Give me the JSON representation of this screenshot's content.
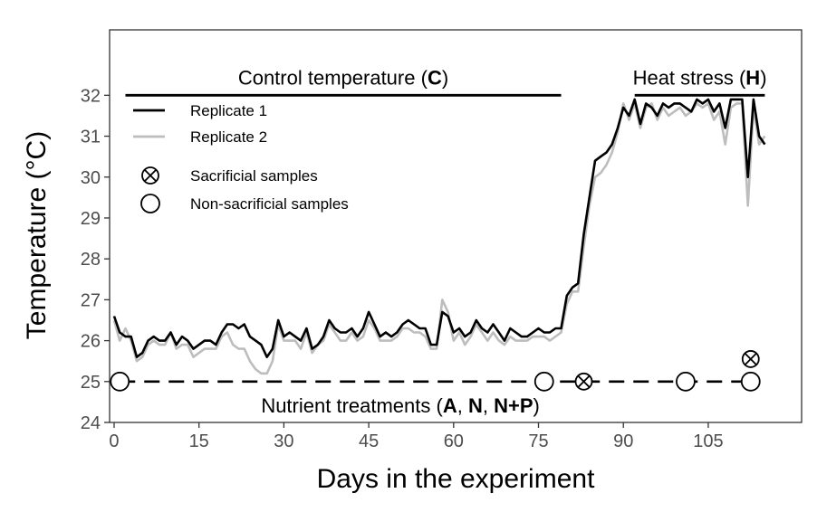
{
  "chart_data": {
    "type": "line",
    "xlabel": "Days in the experiment",
    "ylabel": "Temperature (°C)",
    "xlim": [
      -0.8,
      121.5
    ],
    "ylim": [
      24,
      33.6
    ],
    "x_ticks": [
      0,
      15,
      30,
      45,
      60,
      75,
      90,
      105
    ],
    "y_ticks": [
      24,
      25,
      26,
      27,
      28,
      29,
      30,
      31,
      32
    ],
    "grid": false,
    "legend_position": "top-left",
    "colors": {
      "replicate1": "#000000",
      "replicate2": "#bdbdbd"
    },
    "series": [
      {
        "name": "Replicate 1",
        "x": [
          0,
          1,
          2,
          3,
          4,
          5,
          6,
          7,
          8,
          9,
          10,
          11,
          12,
          13,
          14,
          15,
          16,
          17,
          18,
          19,
          20,
          21,
          22,
          23,
          24,
          25,
          26,
          27,
          28,
          29,
          30,
          31,
          32,
          33,
          34,
          35,
          36,
          37,
          38,
          39,
          40,
          41,
          42,
          43,
          44,
          45,
          46,
          47,
          48,
          49,
          50,
          51,
          52,
          53,
          54,
          55,
          56,
          57,
          58,
          59,
          60,
          61,
          62,
          63,
          64,
          65,
          66,
          67,
          68,
          69,
          70,
          71,
          72,
          73,
          74,
          75,
          76,
          77,
          78,
          79,
          80,
          81,
          82,
          83,
          84,
          85,
          86,
          87,
          88,
          89,
          90,
          91,
          92,
          93,
          94,
          95,
          96,
          97,
          98,
          99,
          100,
          101,
          102,
          103,
          104,
          105,
          106,
          107,
          108,
          109,
          110,
          111,
          112,
          113,
          114,
          115
        ],
        "values": [
          26.6,
          26.2,
          26.1,
          26.1,
          25.6,
          25.7,
          26.0,
          26.1,
          26.0,
          26.0,
          26.2,
          25.9,
          26.1,
          26.0,
          25.8,
          25.9,
          26.0,
          26.0,
          25.9,
          26.2,
          26.4,
          26.4,
          26.3,
          26.4,
          26.1,
          26.0,
          25.9,
          25.6,
          25.8,
          26.5,
          26.1,
          26.2,
          26.1,
          26.0,
          26.3,
          25.8,
          25.9,
          26.1,
          26.5,
          26.3,
          26.2,
          26.2,
          26.3,
          26.1,
          26.3,
          26.7,
          26.4,
          26.1,
          26.2,
          26.1,
          26.2,
          26.4,
          26.5,
          26.4,
          26.3,
          26.3,
          25.9,
          25.9,
          26.7,
          26.6,
          26.2,
          26.3,
          26.1,
          26.2,
          26.5,
          26.3,
          26.2,
          26.4,
          26.2,
          26.0,
          26.3,
          26.2,
          26.1,
          26.1,
          26.2,
          26.3,
          26.2,
          26.2,
          26.3,
          26.3,
          27.1,
          27.3,
          27.4,
          28.6,
          29.5,
          30.4,
          30.5,
          30.6,
          30.8,
          31.2,
          31.7,
          31.5,
          31.9,
          31.3,
          31.8,
          31.7,
          31.5,
          31.8,
          31.7,
          31.8,
          31.8,
          31.7,
          31.6,
          31.9,
          31.8,
          31.9,
          31.6,
          31.8,
          31.2,
          31.9,
          31.9,
          31.9,
          30.0,
          31.9,
          31.0,
          30.8
        ]
      },
      {
        "name": "Replicate 2",
        "x": [
          0,
          1,
          2,
          3,
          4,
          5,
          6,
          7,
          8,
          9,
          10,
          11,
          12,
          13,
          14,
          15,
          16,
          17,
          18,
          19,
          20,
          21,
          22,
          23,
          24,
          25,
          26,
          27,
          28,
          29,
          30,
          31,
          32,
          33,
          34,
          35,
          36,
          37,
          38,
          39,
          40,
          41,
          42,
          43,
          44,
          45,
          46,
          47,
          48,
          49,
          50,
          51,
          52,
          53,
          54,
          55,
          56,
          57,
          58,
          59,
          60,
          61,
          62,
          63,
          64,
          65,
          66,
          67,
          68,
          69,
          70,
          71,
          72,
          73,
          74,
          75,
          76,
          77,
          78,
          79,
          80,
          81,
          82,
          83,
          84,
          85,
          86,
          87,
          88,
          89,
          90,
          91,
          92,
          93,
          94,
          95,
          96,
          97,
          98,
          99,
          100,
          101,
          102,
          103,
          104,
          105,
          106,
          107,
          108,
          109,
          110,
          111,
          112,
          113,
          114,
          115
        ],
        "values": [
          26.5,
          26.0,
          26.3,
          26.0,
          25.5,
          25.6,
          25.9,
          26.0,
          25.9,
          25.9,
          26.2,
          25.8,
          25.9,
          25.9,
          25.6,
          25.7,
          25.8,
          25.8,
          25.8,
          26.1,
          26.2,
          25.9,
          25.8,
          25.8,
          25.5,
          25.3,
          25.2,
          25.2,
          25.5,
          26.4,
          26.0,
          26.0,
          26.0,
          25.8,
          26.2,
          25.7,
          25.9,
          26.0,
          26.4,
          26.2,
          26.0,
          26.0,
          26.2,
          26.0,
          26.1,
          26.5,
          26.3,
          26.0,
          26.0,
          26.0,
          26.1,
          26.3,
          26.3,
          26.2,
          26.2,
          26.1,
          25.8,
          25.8,
          27.0,
          26.7,
          26.0,
          26.2,
          25.9,
          26.1,
          26.4,
          26.2,
          26.0,
          26.2,
          26.0,
          25.9,
          26.1,
          26.0,
          26.0,
          26.0,
          26.1,
          26.1,
          26.1,
          26.0,
          26.1,
          26.2,
          26.9,
          27.2,
          27.2,
          28.3,
          29.3,
          30.0,
          30.1,
          30.3,
          30.6,
          31.1,
          31.8,
          31.4,
          31.8,
          31.2,
          31.7,
          31.8,
          31.4,
          31.7,
          31.5,
          31.6,
          31.7,
          31.5,
          31.6,
          31.8,
          31.7,
          31.8,
          31.4,
          31.6,
          30.8,
          31.7,
          31.8,
          31.8,
          29.3,
          31.7,
          30.8,
          31.0
        ]
      }
    ],
    "phases": [
      {
        "label": "Control temperature",
        "code": "C",
        "x_start": 2,
        "x_end": 79,
        "y": 32
      },
      {
        "label": "Heat stress",
        "code": "H",
        "x_start": 92,
        "x_end": 115,
        "y": 32
      }
    ],
    "nutrient_line": {
      "y": 25,
      "x_start": 1,
      "x_end": 113
    },
    "nutrient_label": {
      "prefix": "Nutrient treatments (",
      "t1": "A",
      "sep1": ", ",
      "t2": "N",
      "sep2": ", ",
      "t3": "N+P",
      "suffix": ")"
    },
    "samples": [
      {
        "type": "non-sacrificial",
        "x": 1,
        "y": 25
      },
      {
        "type": "non-sacrificial",
        "x": 76,
        "y": 25
      },
      {
        "type": "sacrificial",
        "x": 83,
        "y": 25
      },
      {
        "type": "non-sacrificial",
        "x": 101,
        "y": 25
      },
      {
        "type": "non-sacrificial",
        "x": 112.5,
        "y": 25
      },
      {
        "type": "sacrificial",
        "x": 112.5,
        "y": 25.55
      }
    ],
    "legend": {
      "replicate1": "Replicate 1",
      "replicate2": "Replicate 2",
      "sacrificial": "Sacrificial samples",
      "non_sacrificial": "Non-sacrificial samples"
    }
  }
}
